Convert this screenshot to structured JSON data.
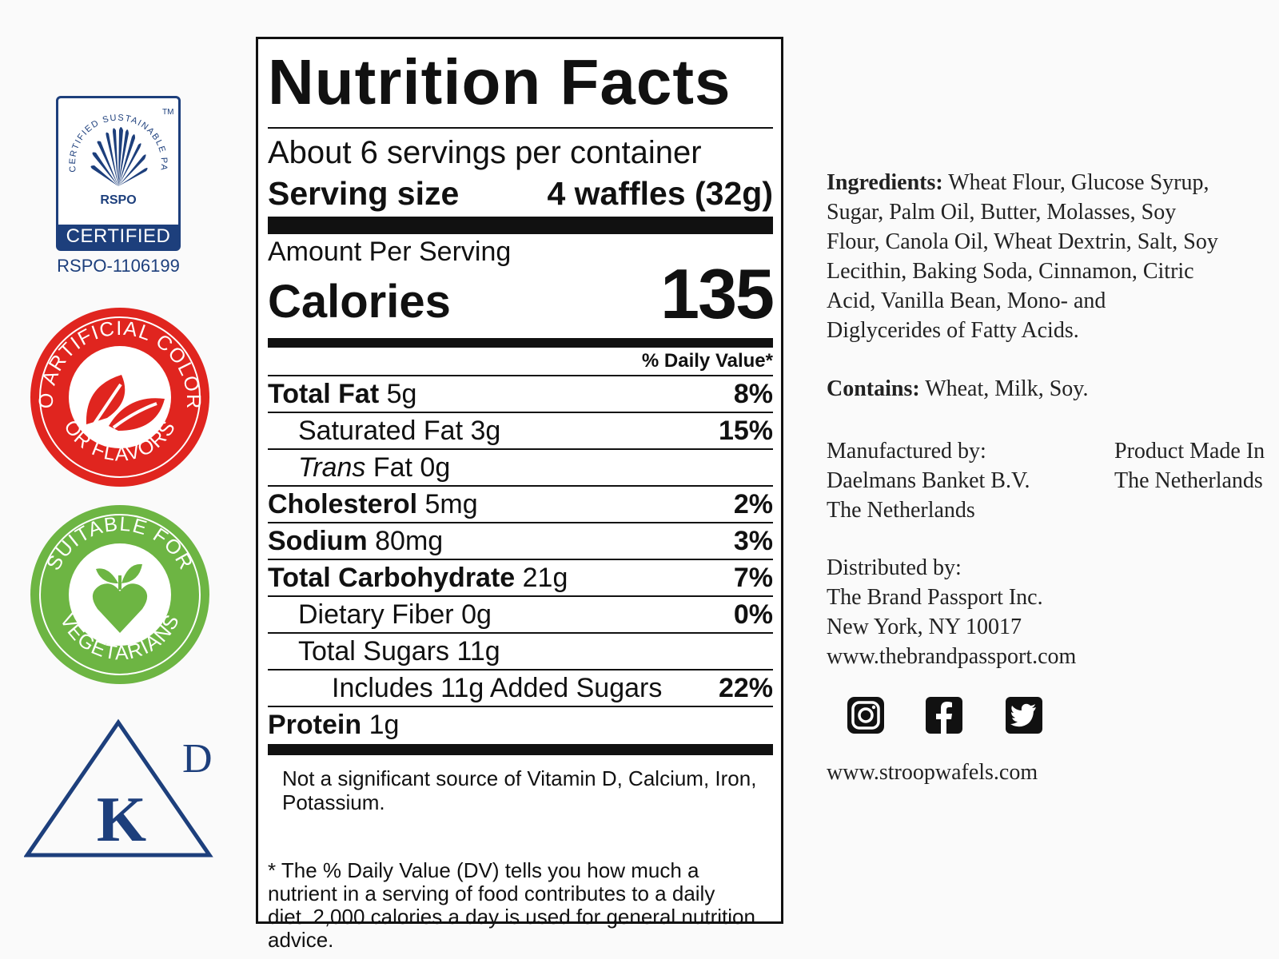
{
  "badges": {
    "rspo": {
      "arc_text": "CERTIFIED SUSTAINABLE PALM OIL",
      "tm": "TM",
      "logo_text": "RSPO",
      "banner": "CERTIFIED",
      "number": "RSPO-1106199",
      "color": "#1d3f7c"
    },
    "no_artificial": {
      "text_top": "NO ARTIFICIAL COLORS",
      "text_bottom": "OR FLAVORS",
      "color": "#e0251f"
    },
    "vegetarian": {
      "text_top": "SUITABLE FOR",
      "text_bottom": "VEGETARIANS",
      "color": "#6db543"
    },
    "kosher": {
      "k": "K",
      "d": "D",
      "color": "#1d3f7c"
    }
  },
  "nutrition": {
    "title": "Nutrition Facts",
    "servings_per_container": "About 6 servings per container",
    "serving_size_label": "Serving size",
    "serving_size_value": "4 waffles (32g)",
    "amount_per_serving": "Amount Per Serving",
    "calories_label": "Calories",
    "calories_value": "135",
    "dv_header": "% Daily Value*",
    "rows": [
      {
        "label": "Total Fat",
        "amount": "5g",
        "dv": "8%"
      },
      {
        "label": "Saturated Fat",
        "amount": "3g",
        "dv": "15%"
      },
      {
        "label": "Trans",
        "label_rest": "Fat",
        "amount": "0g",
        "dv": ""
      },
      {
        "label": "Cholesterol",
        "amount": "5mg",
        "dv": "2%"
      },
      {
        "label": "Sodium",
        "amount": "80mg",
        "dv": "3%"
      },
      {
        "label": "Total Carbohydrate",
        "amount": "21g",
        "dv": "7%"
      },
      {
        "label": "Dietary Fiber",
        "amount": "0g",
        "dv": "0%"
      },
      {
        "label": "Total Sugars",
        "amount": "11g",
        "dv": ""
      },
      {
        "label": "Includes 11g Added Sugars",
        "amount": "",
        "dv": "22%"
      },
      {
        "label": "Protein",
        "amount": "1g",
        "dv": ""
      }
    ],
    "vitamins_note": "Not a significant source of Vitamin D, Calcium, Iron, Potassium.",
    "footnote": "* The % Daily Value (DV) tells you how much a nutrient in a serving of food contributes to a daily diet. 2,000 calories a day is used for general nutrition advice."
  },
  "info": {
    "ingredients_label": "Ingredients:",
    "ingredients_text": " Wheat Flour, Glucose Syrup, Sugar, Palm Oil, Butter, Molasses, Soy Flour, Canola Oil, Wheat Dextrin, Salt, Soy Lecithin, Baking Soda, Cinnamon, Citric Acid, Vanilla Bean, Mono- and Diglycerides of Fatty Acids.",
    "contains_label": "Contains:",
    "contains_text": " Wheat, Milk, Soy.",
    "manufactured_label": "Manufactured by:",
    "manufacturer_name": "Daelmans Banket B.V.",
    "manufacturer_country": "The Netherlands",
    "made_in_line1": "Product Made In",
    "made_in_line2": "The Netherlands",
    "distributed_label": "Distributed by:",
    "distributor_name": "The Brand Passport Inc.",
    "distributor_city": "New York, NY 10017",
    "distributor_site": "www.thebrandpassport.com",
    "social_icons": [
      "instagram-icon",
      "facebook-icon",
      "twitter-icon"
    ],
    "website": "www.stroopwafels.com"
  }
}
